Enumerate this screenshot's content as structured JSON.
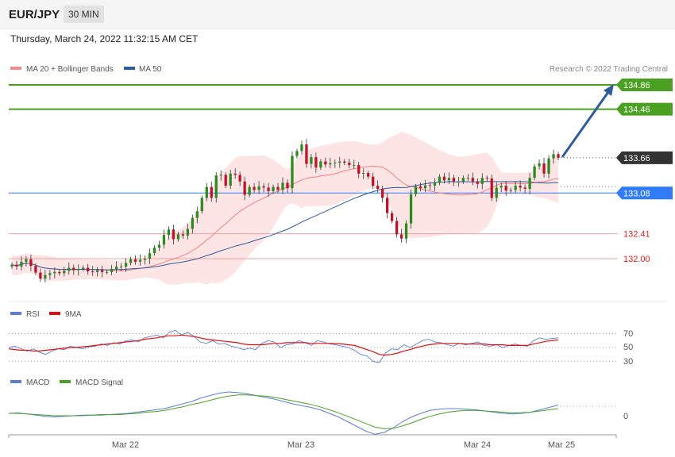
{
  "header": {
    "symbol": "EUR/JPY",
    "timeframe": "30 MIN",
    "timestamp": "Thursday, March 24, 2022 11:32:15 AM CET"
  },
  "chart_data": [
    {
      "type": "candlestick",
      "panel": "price",
      "legend": [
        {
          "label": "MA 20 + Bollinger Bands",
          "color": "#f28b8b"
        },
        {
          "label": "MA 50",
          "color": "#2d5b9b"
        }
      ],
      "credit": "Research © 2022 Trading Central",
      "x_ticks": [
        "Mar 22",
        "Mar 23",
        "Mar 24",
        "Mar 25"
      ],
      "levels": [
        {
          "value": 134.86,
          "label": "134.86",
          "style": "target",
          "color": "#4aa021"
        },
        {
          "value": 134.46,
          "label": "134.46",
          "style": "target",
          "color": "#4aa021"
        },
        {
          "value": 133.66,
          "label": "133.66",
          "style": "last",
          "color": "#333333"
        },
        {
          "value": 133.08,
          "label": "133.08",
          "style": "pivot",
          "color": "#2f7cf6"
        },
        {
          "value": 132.41,
          "label": "132.41",
          "style": "support",
          "color": "#e02020"
        },
        {
          "value": 132.0,
          "label": "132.00",
          "style": "support",
          "color": "#e02020"
        }
      ],
      "closes": [
        131.9,
        131.87,
        131.95,
        131.99,
        131.88,
        131.77,
        131.67,
        131.73,
        131.76,
        131.78,
        131.76,
        131.8,
        131.85,
        131.81,
        131.83,
        131.85,
        131.79,
        131.78,
        131.81,
        131.78,
        131.78,
        131.83,
        131.87,
        131.87,
        131.93,
        131.99,
        131.95,
        131.98,
        132.0,
        132.09,
        132.18,
        132.23,
        132.39,
        132.48,
        132.32,
        132.4,
        132.38,
        132.49,
        132.67,
        132.78,
        133.0,
        133.18,
        133.0,
        133.37,
        133.38,
        133.2,
        133.4,
        133.38,
        133.27,
        133.05,
        133.18,
        133.13,
        133.19,
        133.17,
        133.11,
        133.18,
        133.13,
        133.25,
        133.16,
        133.69,
        133.77,
        133.88,
        133.56,
        133.67,
        133.5,
        133.6,
        133.55,
        133.57,
        133.58,
        133.6,
        133.58,
        133.54,
        133.54,
        133.4,
        133.41,
        133.35,
        133.2,
        133.15,
        133.0,
        132.75,
        132.62,
        132.4,
        132.33,
        132.58,
        133.06,
        133.19,
        133.16,
        133.21,
        133.2,
        133.25,
        133.35,
        133.29,
        133.33,
        133.27,
        133.27,
        133.33,
        133.33,
        133.27,
        133.23,
        133.33,
        133.32,
        133.0,
        133.17,
        133.2,
        133.12,
        133.13,
        133.2,
        133.17,
        133.15,
        133.33,
        133.52,
        133.57,
        133.4,
        133.65,
        133.72,
        133.66
      ]
    },
    {
      "type": "line",
      "panel": "rsi",
      "legend": [
        {
          "label": "RSI",
          "color": "#5b7fd6"
        },
        {
          "label": "9MA",
          "color": "#e01010"
        }
      ],
      "y_ticks": [
        "70",
        "50",
        "30"
      ],
      "series": [
        {
          "name": "RSI",
          "values": [
            50,
            52,
            48,
            45,
            48,
            43,
            40,
            45,
            48,
            47,
            52,
            50,
            48,
            51,
            52,
            55,
            53,
            57,
            55,
            60,
            61,
            58,
            64,
            66,
            68,
            64,
            72,
            75,
            68,
            72,
            66,
            58,
            56,
            60,
            55,
            56,
            52,
            50,
            47,
            49,
            47,
            56,
            60,
            58,
            50,
            54,
            55,
            60,
            57,
            53,
            60,
            58,
            55,
            54,
            52,
            50,
            46,
            40,
            38,
            30,
            28,
            42,
            48,
            47,
            54,
            50,
            55,
            60,
            62,
            58,
            57,
            54,
            52,
            56,
            54,
            56,
            58,
            53,
            52,
            54,
            50,
            53,
            55,
            53,
            52,
            60,
            64,
            62,
            63,
            64
          ]
        },
        {
          "name": "9MA",
          "values": [
            48,
            47,
            46,
            46,
            45,
            45,
            46,
            47,
            48,
            49,
            50,
            50,
            51,
            52,
            53,
            54,
            55,
            56,
            57,
            58,
            59,
            60,
            62,
            63,
            64,
            66,
            67,
            67,
            68,
            67,
            66,
            64,
            62,
            61,
            60,
            59,
            58,
            57,
            55,
            54,
            54,
            54,
            55,
            56,
            56,
            57,
            57,
            57,
            57,
            56,
            56,
            56,
            56,
            56,
            55,
            54,
            53,
            50,
            47,
            44,
            40,
            39,
            40,
            42,
            45,
            47,
            50,
            52,
            54,
            55,
            56,
            56,
            56,
            56,
            55,
            55,
            55,
            55,
            54,
            54,
            54,
            53,
            53,
            53,
            53,
            55,
            57,
            59,
            60,
            61
          ]
        }
      ]
    },
    {
      "type": "line",
      "panel": "macd",
      "legend": [
        {
          "label": "MACD",
          "color": "#5b7fd6"
        },
        {
          "label": "MACD Signal",
          "color": "#4aa021"
        }
      ],
      "y_ticks": [
        "0"
      ],
      "series": [
        {
          "name": "MACD",
          "values": [
            0.0,
            0.01,
            -0.01,
            -0.03,
            -0.05,
            -0.06,
            -0.05,
            -0.04,
            -0.03,
            -0.03,
            -0.02,
            -0.02,
            -0.01,
            0.0,
            0.02,
            0.04,
            0.06,
            0.08,
            0.12,
            0.16,
            0.2,
            0.26,
            0.3,
            0.34,
            0.36,
            0.35,
            0.33,
            0.3,
            0.27,
            0.24,
            0.2,
            0.16,
            0.13,
            0.1,
            0.06,
            0.0,
            -0.06,
            -0.14,
            -0.22,
            -0.3,
            -0.35,
            -0.32,
            -0.24,
            -0.14,
            -0.06,
            0.0,
            0.05,
            0.07,
            0.08,
            0.08,
            0.07,
            0.06,
            0.04,
            0.02,
            0.0,
            -0.01,
            0.0,
            0.02,
            0.06,
            0.1,
            0.14
          ]
        },
        {
          "name": "MACD Signal",
          "values": [
            0.0,
            0.0,
            -0.01,
            -0.02,
            -0.03,
            -0.04,
            -0.04,
            -0.04,
            -0.04,
            -0.03,
            -0.03,
            -0.02,
            -0.02,
            -0.01,
            0.0,
            0.02,
            0.03,
            0.05,
            0.08,
            0.11,
            0.15,
            0.18,
            0.22,
            0.26,
            0.29,
            0.31,
            0.31,
            0.3,
            0.29,
            0.27,
            0.24,
            0.21,
            0.18,
            0.15,
            0.11,
            0.06,
            0.01,
            -0.05,
            -0.11,
            -0.17,
            -0.23,
            -0.26,
            -0.25,
            -0.21,
            -0.16,
            -0.1,
            -0.05,
            -0.01,
            0.02,
            0.04,
            0.05,
            0.05,
            0.04,
            0.03,
            0.02,
            0.01,
            0.01,
            0.02,
            0.04,
            0.06,
            0.08
          ]
        }
      ]
    }
  ]
}
